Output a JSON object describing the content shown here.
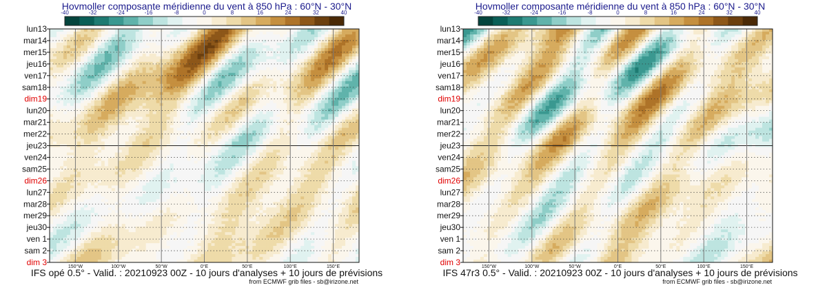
{
  "chart_data": [
    {
      "type": "heatmap",
      "title": "Hovmoller composante méridienne du vent à 850 hPa : 60°N - 30°N",
      "footer": "IFS opé 0.5° - Valid. : 20210923 00Z - 10 jours d'analyses + 10 jours de prévisions",
      "credit": "from ECMWF grib files - sb@irizone.net",
      "y_days": [
        "lun13",
        "mar14",
        "mer15",
        "jeu16",
        "ven17",
        "sam18",
        "dim19",
        "lun20",
        "mar21",
        "mer22",
        "jeu23",
        "ven24",
        "sam25",
        "dim26",
        "lun27",
        "mar28",
        "mer29",
        "jeu30",
        "ven 1",
        "sam 2",
        "dim 3"
      ],
      "sunday_days": [
        "dim19",
        "dim26",
        "dim 3"
      ],
      "x_ticks": [
        "150°W",
        "100°W",
        "50°W",
        "0°E",
        "50°E",
        "100°E",
        "150°E"
      ],
      "x_tick_values": [
        -150,
        -100,
        -50,
        0,
        50,
        100,
        150
      ],
      "xlim": [
        -180,
        180
      ],
      "analysis_end_day": "jeu23",
      "colorbar_ticks": [
        "-40",
        "-32",
        "-24",
        "-16",
        "-8",
        "0",
        "8",
        "16",
        "24",
        "32",
        "40"
      ],
      "colorbar_range": [
        -40,
        40
      ],
      "colorbar_colors": [
        "#04443d",
        "#0a5f57",
        "#1e7b72",
        "#3a9890",
        "#60b3ab",
        "#8fcec8",
        "#bde4e0",
        "#e0f2f0",
        "#f6f6f6",
        "#fbf6ec",
        "#f7ebcf",
        "#eedba9",
        "#e3c585",
        "#d6ab5e",
        "#c58f3f",
        "#ae7328",
        "#8d5719",
        "#6c3f0e",
        "#4a2906"
      ]
    },
    {
      "type": "heatmap",
      "title": "Hovmoller composante méridienne du vent à 850 hPa : 60°N - 30°N",
      "footer": "IFS 47r3 0.5° - Valid. : 20210923 00Z - 10 jours d'analyses + 10 jours de prévisions",
      "credit": "from ECMWF grib files - sb@irizone.net",
      "y_days": [
        "lun13",
        "mar14",
        "mer15",
        "jeu16",
        "ven17",
        "sam18",
        "dim19",
        "lun20",
        "mar21",
        "mer22",
        "jeu23",
        "ven24",
        "sam25",
        "dim26",
        "lun27",
        "mar28",
        "mer29",
        "jeu30",
        "ven 1",
        "sam 2",
        "dim 3"
      ],
      "sunday_days": [
        "dim19",
        "dim26",
        "dim 3"
      ],
      "x_ticks": [
        "150°W",
        "100°W",
        "50°W",
        "0°E",
        "50°E",
        "100°E",
        "150°E"
      ],
      "x_tick_values": [
        -150,
        -100,
        -50,
        0,
        50,
        100,
        150
      ],
      "xlim": [
        -180,
        180
      ],
      "analysis_end_day": "jeu23",
      "colorbar_ticks": [
        "-40",
        "-32",
        "-24",
        "-16",
        "-8",
        "0",
        "8",
        "16",
        "24",
        "32",
        "40"
      ],
      "colorbar_range": [
        -40,
        40
      ],
      "colorbar_colors": [
        "#04443d",
        "#0a5f57",
        "#1e7b72",
        "#3a9890",
        "#60b3ab",
        "#8fcec8",
        "#bde4e0",
        "#e0f2f0",
        "#f6f6f6",
        "#fbf6ec",
        "#f7ebcf",
        "#eedba9",
        "#e3c585",
        "#d6ab5e",
        "#c58f3f",
        "#ae7328",
        "#8d5719",
        "#6c3f0e",
        "#4a2906"
      ]
    }
  ]
}
